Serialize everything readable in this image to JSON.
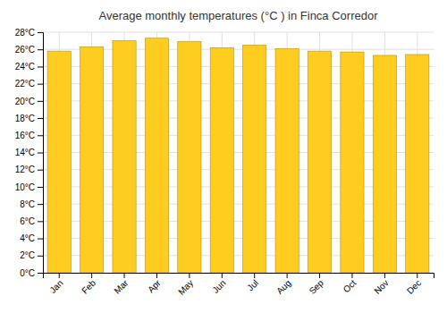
{
  "chart_data": {
    "type": "bar",
    "title": "Average monthly temperatures (°C ) in Finca Corredor",
    "categories": [
      "Jan",
      "Feb",
      "Mar",
      "Apr",
      "May",
      "Jun",
      "Jul",
      "Aug",
      "Sep",
      "Oct",
      "Nov",
      "Dec"
    ],
    "values": [
      25.8,
      26.3,
      27.0,
      27.3,
      26.9,
      26.2,
      26.5,
      26.1,
      25.8,
      25.7,
      25.3,
      25.4
    ],
    "color": "#FFCC20",
    "ylim": [
      0,
      28
    ],
    "yticks": [
      {
        "value": 0,
        "label": "0°C"
      },
      {
        "value": 2,
        "label": "2°C"
      },
      {
        "value": 4,
        "label": "4°C"
      },
      {
        "value": 6,
        "label": "6°C"
      },
      {
        "value": 8,
        "label": "8°C"
      },
      {
        "value": 10,
        "label": "10°C"
      },
      {
        "value": 12,
        "label": "12°C"
      },
      {
        "value": 14,
        "label": "14°C"
      },
      {
        "value": 16,
        "label": "16°C"
      },
      {
        "value": 18,
        "label": "18°C"
      },
      {
        "value": 20,
        "label": "20°C"
      },
      {
        "value": 22,
        "label": "22°C"
      },
      {
        "value": 24,
        "label": "24°C"
      },
      {
        "value": 26,
        "label": "26°C"
      },
      {
        "value": 28,
        "label": "28°C"
      }
    ],
    "grid": true
  }
}
